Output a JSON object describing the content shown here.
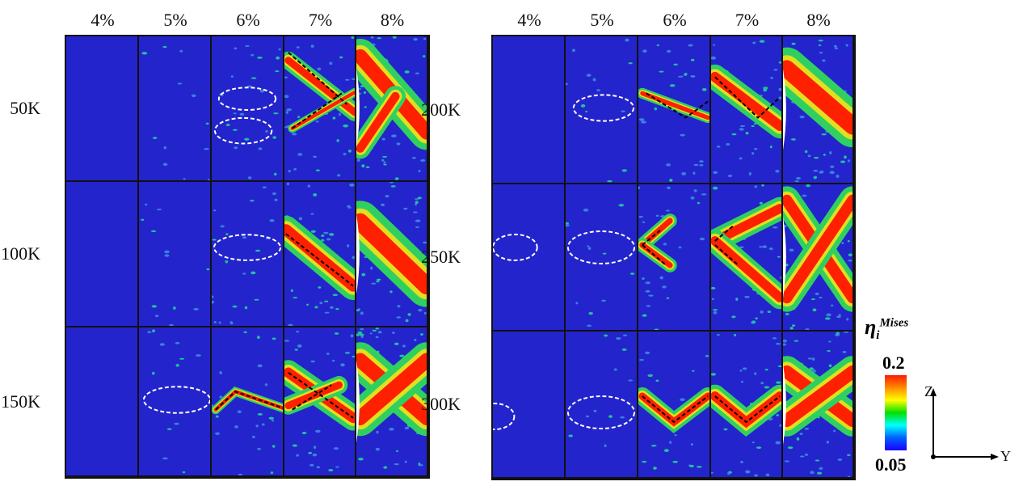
{
  "left_figure": {
    "strains": [
      "4%",
      "5%",
      "6%",
      "7%",
      "8%"
    ],
    "temperatures": [
      "50K",
      "100K",
      "150K"
    ]
  },
  "right_figure": {
    "strains": [
      "4%",
      "5%",
      "6%",
      "7%",
      "8%"
    ],
    "temperatures": [
      "200K",
      "250K",
      "300K"
    ]
  },
  "colorbar": {
    "label": "η",
    "subscript": "i",
    "superscript": "Mises",
    "max": "0.2",
    "min": "0.05",
    "colors": [
      "#ff1a00",
      "#ffff00",
      "#00e000",
      "#00ffff",
      "#1a00ff"
    ]
  },
  "axes": {
    "vertical": "Z",
    "horizontal": "Y"
  },
  "colors": {
    "background_field": "#2424cc",
    "highlight": "#ffffff"
  }
}
